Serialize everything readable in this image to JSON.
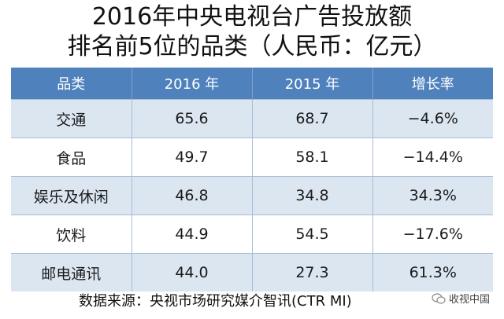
{
  "title_line1": "2016年中央电视台广告投放额",
  "title_line2": "排名前5位的品类（人民币：亿元）",
  "chart_data": {
    "type": "table",
    "columns": [
      "品类",
      "2016 年",
      "2015 年",
      "增长率"
    ],
    "rows": [
      [
        "交通",
        "65.6",
        "68.7",
        "−4.6%"
      ],
      [
        "食品",
        "49.7",
        "58.1",
        "−14.4%"
      ],
      [
        "娱乐及休闲",
        "46.8",
        "34.8",
        "34.3%"
      ],
      [
        "饮料",
        "44.9",
        "54.5",
        "−17.6%"
      ],
      [
        "邮电通讯",
        "44.0",
        "27.3",
        "61.3%"
      ]
    ]
  },
  "source": "数据来源：央视市场研究媒介智讯(CTR MI)",
  "watermark": "收视中国",
  "colors": {
    "header": "#4f81bd",
    "band": "#dce6f1"
  }
}
